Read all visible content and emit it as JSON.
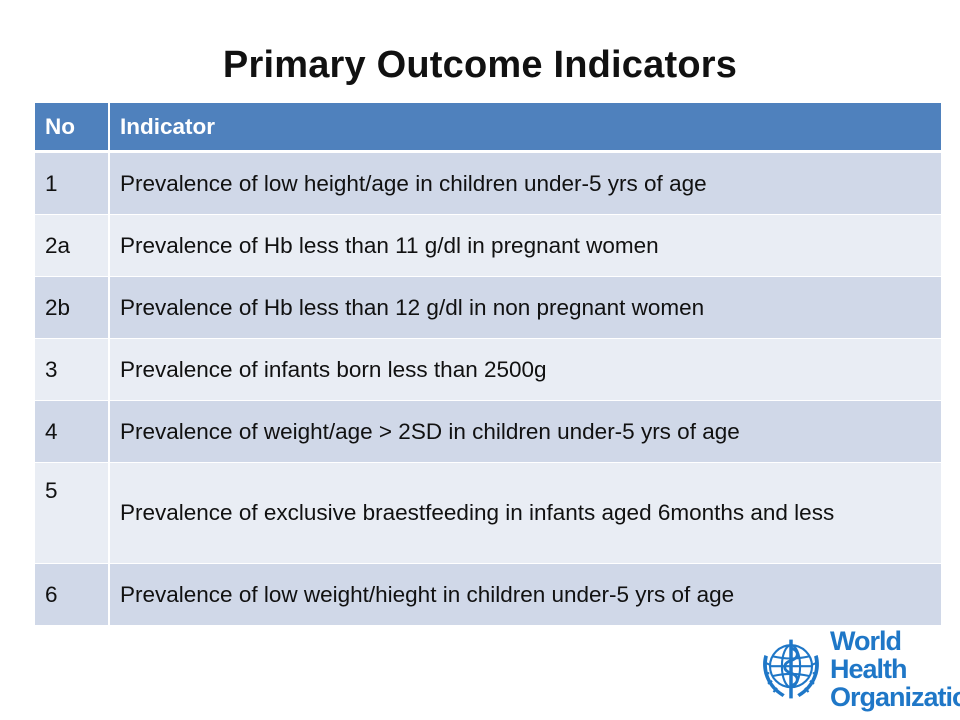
{
  "slide": {
    "title": "Primary Outcome Indicators"
  },
  "table": {
    "headers": [
      "No",
      "Indicator"
    ],
    "rows": [
      {
        "no": "1",
        "indicator": "Prevalence of low height/age in children under-5 yrs of age"
      },
      {
        "no": "2a",
        "indicator": "Prevalence of Hb  less than 11 g/dl in pregnant women"
      },
      {
        "no": "2b",
        "indicator": "Prevalence of Hb less than 12 g/dl in non pregnant women"
      },
      {
        "no": "3",
        "indicator": "Prevalence of infants born less than 2500g"
      },
      {
        "no": "4",
        "indicator": "Prevalence of weight/age > 2SD in children under-5 yrs of age"
      },
      {
        "no": "5",
        "indicator": "Prevalence of exclusive braestfeeding in infants aged 6months and less"
      },
      {
        "no": "6",
        "indicator": "Prevalence of low weight/hieght in children under-5 yrs of age"
      }
    ]
  },
  "logo": {
    "line1": "World Health",
    "line2": "Organization",
    "icon": "who-emblem-icon"
  },
  "colors": {
    "header": "#4f81bd",
    "row_odd": "#d0d8e8",
    "row_even": "#e9edf4",
    "logo": "#1f77c7"
  }
}
